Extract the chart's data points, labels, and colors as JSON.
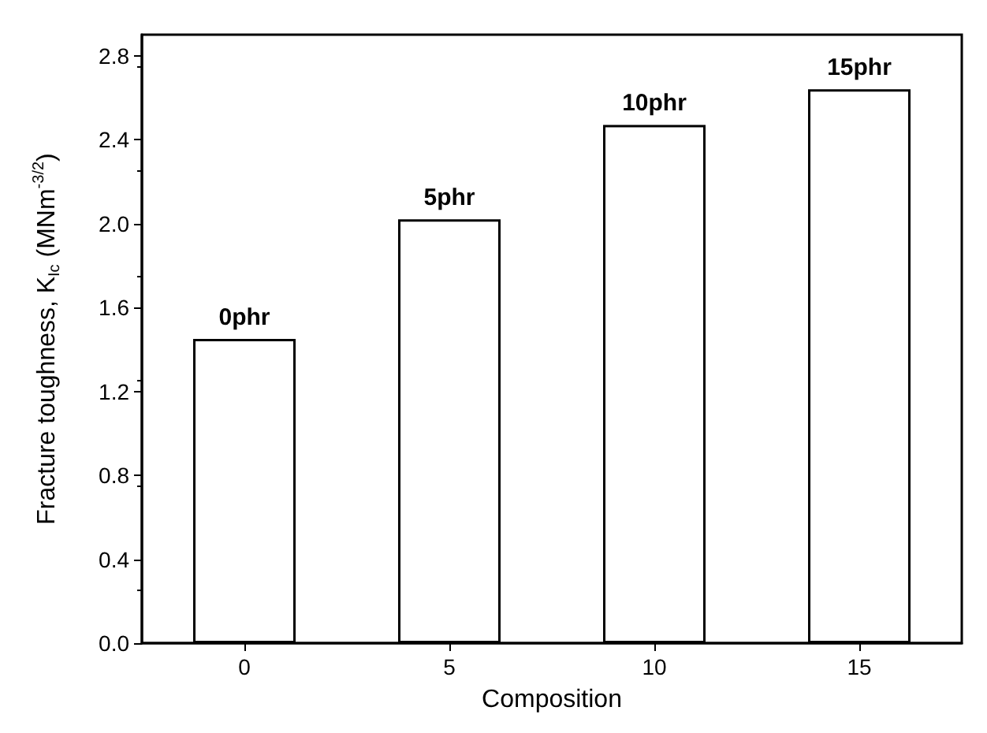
{
  "chart_data": {
    "type": "bar",
    "xlabel": "Composition",
    "ylabel": "Fracture toughness, K$_{Ic}$ (MNm$^{-3/2}$)",
    "categories": [
      "0",
      "5",
      "10",
      "15"
    ],
    "values": [
      1.45,
      2.02,
      2.47,
      2.64
    ],
    "annotations": [
      {
        "text": "0phr",
        "x": "0",
        "y": 1.45
      },
      {
        "text": "5phr",
        "x": "5",
        "y": 2.02
      },
      {
        "text": "10phr",
        "x": "10",
        "y": 2.47
      },
      {
        "text": "15phr",
        "x": "15",
        "y": 2.64
      }
    ],
    "color": "#ffffff",
    "ylim": [
      0,
      2.9
    ],
    "yticks": [
      {
        "value": 0,
        "label": "0.0"
      },
      {
        "value": 0.4,
        "label": "0.4"
      },
      {
        "value": 0.8,
        "label": "0.8"
      },
      {
        "value": 1.2,
        "label": "1.2"
      },
      {
        "value": 1.6,
        "label": "1.6"
      },
      {
        "value": 2,
        "label": "2.0"
      },
      {
        "value": 2.4,
        "label": "2.4"
      },
      {
        "value": 2.8,
        "label": "2.8"
      }
    ],
    "grid": false
  }
}
